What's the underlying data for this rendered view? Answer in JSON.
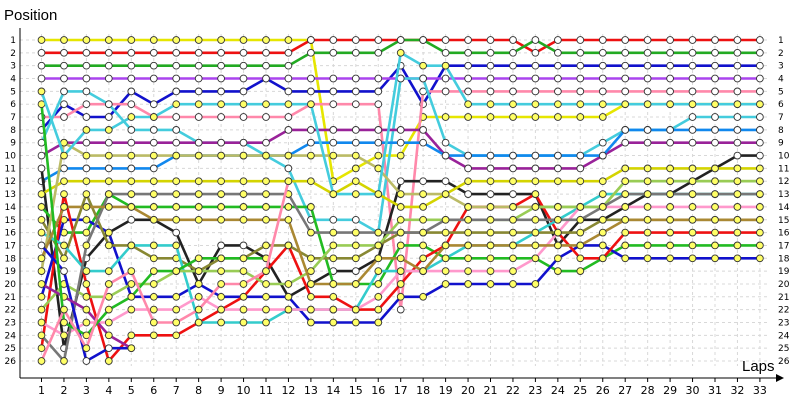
{
  "chart_data": {
    "type": "line",
    "xlabel": "Laps",
    "ylabel": "Position",
    "x_ticks": [
      1,
      2,
      3,
      4,
      5,
      6,
      7,
      8,
      9,
      10,
      11,
      12,
      13,
      14,
      15,
      16,
      17,
      18,
      19,
      20,
      21,
      22,
      23,
      24,
      25,
      26,
      27,
      28,
      29,
      30,
      31,
      32,
      33
    ],
    "left_ticks": [
      1,
      2,
      3,
      4,
      5,
      6,
      7,
      8,
      9,
      10,
      11,
      12,
      13,
      14,
      15,
      16,
      17,
      18,
      19,
      20,
      21,
      22,
      23,
      24,
      25,
      26
    ],
    "right_ticks": [
      1,
      2,
      3,
      4,
      5,
      6,
      7,
      8,
      9,
      10,
      11,
      12,
      13,
      14,
      15,
      16,
      17,
      18,
      19,
      20,
      21,
      22,
      23,
      24,
      25,
      26
    ],
    "xlim": [
      0,
      33.7
    ],
    "ylim": [
      26.5,
      0.5
    ],
    "grid": true,
    "series": [
      {
        "color": "#e6e600",
        "marker_fill": "#ffff66",
        "values": [
          1,
          1,
          1,
          1,
          1,
          1,
          1,
          1,
          1,
          1,
          1,
          1,
          1,
          12,
          11,
          10,
          10,
          7,
          7,
          7,
          7,
          7,
          7,
          7,
          7,
          7,
          6,
          6,
          6,
          6,
          6,
          6,
          6
        ]
      },
      {
        "color": "#ee1111",
        "marker_fill": "#ffffff",
        "values": [
          2,
          2,
          2,
          2,
          2,
          2,
          2,
          2,
          2,
          2,
          2,
          2,
          1,
          1,
          1,
          1,
          1,
          1,
          1,
          1,
          1,
          1,
          2,
          1,
          1,
          1,
          1,
          1,
          1,
          1,
          1,
          1,
          1
        ]
      },
      {
        "color": "#22aa22",
        "marker_fill": "#ffffff",
        "values": [
          3,
          3,
          3,
          3,
          3,
          3,
          3,
          3,
          3,
          3,
          3,
          3,
          2,
          2,
          2,
          2,
          1,
          1,
          2,
          2,
          2,
          2,
          1,
          2,
          2,
          2,
          2,
          2,
          2,
          2,
          2,
          2,
          2
        ]
      },
      {
        "color": "#1111cc",
        "marker_fill": "#ffffff",
        "values": [
          8,
          6,
          7,
          7,
          5,
          6,
          5,
          5,
          5,
          5,
          4,
          5,
          5,
          5,
          5,
          5,
          3,
          6,
          3,
          3,
          3,
          3,
          3,
          3,
          3,
          3,
          3,
          3,
          3,
          3,
          3,
          3,
          3
        ]
      },
      {
        "color": "#aa44ee",
        "marker_fill": "#ffffff",
        "values": [
          4,
          4,
          4,
          4,
          4,
          4,
          4,
          4,
          4,
          4,
          4,
          4,
          4,
          4,
          4,
          4,
          4,
          4,
          4,
          4,
          4,
          4,
          4,
          4,
          4,
          4,
          4,
          4,
          4,
          4,
          4,
          4,
          4
        ]
      },
      {
        "color": "#ff88aa",
        "marker_fill": "#ffffff",
        "values": [
          7,
          7,
          6,
          6,
          6,
          7,
          7,
          7,
          7,
          7,
          7,
          7,
          6,
          6,
          6,
          6,
          22,
          5,
          5,
          5,
          5,
          5,
          5,
          5,
          5,
          5,
          5,
          5,
          5,
          5,
          5,
          5,
          5
        ]
      },
      {
        "color": "#44ccdd",
        "marker_fill": "#ffffff",
        "values": [
          9,
          5,
          5,
          6,
          8,
          8,
          8,
          9,
          9,
          9,
          10,
          11,
          15,
          15,
          15,
          16,
          4,
          4,
          9,
          10,
          10,
          10,
          10,
          10,
          10,
          9,
          8,
          8,
          8,
          7,
          7,
          7,
          7
        ]
      },
      {
        "color": "#992299",
        "marker_fill": "#ffffff",
        "values": [
          10,
          9,
          9,
          9,
          9,
          9,
          9,
          9,
          9,
          9,
          9,
          8,
          8,
          8,
          8,
          8,
          8,
          8,
          10,
          11,
          11,
          11,
          11,
          11,
          11,
          10,
          9,
          9,
          9,
          9,
          9,
          9,
          9
        ]
      },
      {
        "color": "#1188ee",
        "marker_fill": "#ffffff",
        "values": [
          12,
          11,
          11,
          11,
          11,
          11,
          10,
          10,
          10,
          10,
          10,
          10,
          9,
          9,
          9,
          9,
          9,
          9,
          10,
          10,
          10,
          10,
          10,
          10,
          10,
          10,
          8,
          8,
          8,
          8,
          8,
          8,
          8
        ]
      },
      {
        "color": "#222222",
        "marker_fill": "#ffffff",
        "values": [
          11,
          25,
          18,
          16,
          15,
          15,
          16,
          20,
          17,
          17,
          18,
          21,
          20,
          19,
          19,
          18,
          12,
          12,
          12,
          13,
          13,
          13,
          13,
          17,
          15,
          15,
          14,
          13,
          13,
          12,
          11,
          10,
          10
        ]
      },
      {
        "color": "#d4d400",
        "marker_fill": "#ffff66",
        "values": [
          13,
          12,
          12,
          12,
          12,
          12,
          12,
          12,
          12,
          12,
          12,
          12,
          12,
          13,
          12,
          13,
          14,
          14,
          13,
          12,
          12,
          12,
          12,
          12,
          12,
          12,
          11,
          11,
          11,
          11,
          11,
          11,
          11
        ]
      },
      {
        "color": "#22bb22",
        "marker_fill": "#ffff66",
        "values": [
          14,
          16,
          16,
          13,
          14,
          14,
          14,
          14,
          14,
          14,
          14,
          14,
          14,
          20,
          20,
          20,
          17,
          17,
          18,
          18,
          18,
          18,
          18,
          19,
          19,
          18,
          17,
          17,
          17,
          17,
          17,
          17,
          17
        ]
      },
      {
        "color": "#1111cc",
        "marker_fill": "#ffff66",
        "values": [
          21,
          15,
          15,
          16,
          21,
          21,
          21,
          20,
          21,
          21,
          21,
          21,
          23,
          23,
          23,
          23,
          21,
          21,
          20,
          20,
          20,
          20,
          20,
          18,
          17,
          17,
          18,
          18,
          18,
          18,
          18,
          18,
          18
        ]
      },
      {
        "color": "#ee1111",
        "marker_fill": "#ffff66",
        "values": [
          25,
          13,
          20,
          26,
          24,
          24,
          24,
          23,
          22,
          21,
          19,
          17,
          21,
          21,
          22,
          22,
          20,
          18,
          17,
          14,
          14,
          14,
          13,
          16,
          18,
          18,
          16,
          16,
          16,
          16,
          16,
          16,
          16
        ]
      },
      {
        "color": "#888833",
        "marker_fill": "#ffff66",
        "values": [
          15,
          18,
          13,
          17,
          17,
          18,
          18,
          19,
          18,
          18,
          17,
          17,
          18,
          18,
          18,
          17,
          16,
          16,
          16,
          16,
          16,
          16,
          16,
          16,
          16,
          15,
          15,
          15,
          15,
          15,
          15,
          15,
          15
        ]
      },
      {
        "color": "#33cccc",
        "marker_fill": "#ffff66",
        "values": [
          16,
          17,
          19,
          19,
          17,
          17,
          17,
          23,
          23,
          23,
          23,
          22,
          22,
          22,
          22,
          19,
          19,
          19,
          18,
          17,
          17,
          17,
          16,
          15,
          14,
          13,
          13,
          13,
          13,
          13,
          13,
          13,
          13
        ]
      },
      {
        "color": "#ff99cc",
        "marker_fill": "#ffff66",
        "values": [
          23,
          24,
          23,
          23,
          22,
          22,
          22,
          21,
          22,
          22,
          22,
          22,
          22,
          22,
          22,
          21,
          19,
          19,
          19,
          19,
          19,
          19,
          18,
          16,
          14,
          14,
          14,
          14,
          14,
          14,
          14,
          14,
          14
        ]
      },
      {
        "color": "#bbbb66",
        "marker_fill": "#ffff66",
        "values": [
          19,
          9,
          10,
          10,
          10,
          10,
          10,
          10,
          10,
          10,
          10,
          10,
          10,
          10,
          10,
          11,
          13,
          13,
          13,
          14,
          14,
          14,
          14,
          14,
          14,
          14,
          12,
          12,
          12,
          12,
          12,
          12,
          12
        ]
      },
      {
        "color": "#99cc55",
        "marker_fill": "#ffff66",
        "values": [
          22,
          20,
          21,
          21,
          20,
          20,
          19,
          19,
          19,
          19,
          20,
          20,
          19,
          17,
          17,
          17,
          15,
          15,
          15,
          15,
          15,
          15,
          14,
          14,
          14,
          14,
          12,
          12,
          12,
          12,
          12,
          12,
          12
        ]
      },
      {
        "color": "#777777",
        "marker_fill": "#ffff66",
        "values": [
          24,
          26,
          17,
          13,
          13,
          13,
          13,
          13,
          13,
          13,
          13,
          13,
          16,
          16,
          16,
          16,
          16,
          16,
          15,
          15,
          15,
          15,
          15,
          15,
          15,
          14,
          13,
          13,
          13,
          13,
          13,
          13,
          13
        ]
      },
      {
        "color": "#aa8833",
        "marker_fill": "#ffff66",
        "values": [
          18,
          14,
          14,
          14,
          14,
          15,
          15,
          15,
          15,
          15,
          15,
          15,
          20,
          20,
          20,
          18,
          18,
          19,
          17,
          17,
          17,
          17,
          17,
          17,
          17,
          16,
          15,
          15,
          15,
          15,
          15,
          15,
          15
        ]
      },
      {
        "color": "#1111cc",
        "marker_fill": "#ffffff",
        "values": [
          17,
          19,
          26,
          25,
          25
        ]
      },
      {
        "color": "#992299",
        "marker_fill": "#ffff66",
        "values": [
          20,
          21,
          22,
          24,
          25
        ]
      },
      {
        "color": "#22bb22",
        "marker_fill": "#ffff66",
        "values": [
          6,
          23,
          24,
          22,
          21,
          19,
          19,
          18,
          18,
          18,
          18
        ]
      },
      {
        "color": "#ff88aa",
        "marker_fill": "#ffff66",
        "values": [
          26,
          22,
          25,
          20,
          19,
          23,
          23,
          22,
          20,
          20,
          19,
          12
        ]
      },
      {
        "color": "#44ccdd",
        "marker_fill": "#ffff66",
        "values": [
          5,
          10,
          8,
          8,
          7,
          7,
          6,
          6,
          6,
          6,
          6,
          6,
          6,
          13,
          13,
          13,
          2,
          3,
          3,
          6,
          6,
          6,
          6,
          6,
          6,
          6,
          6,
          6,
          6,
          6,
          6,
          6,
          6
        ]
      }
    ]
  }
}
